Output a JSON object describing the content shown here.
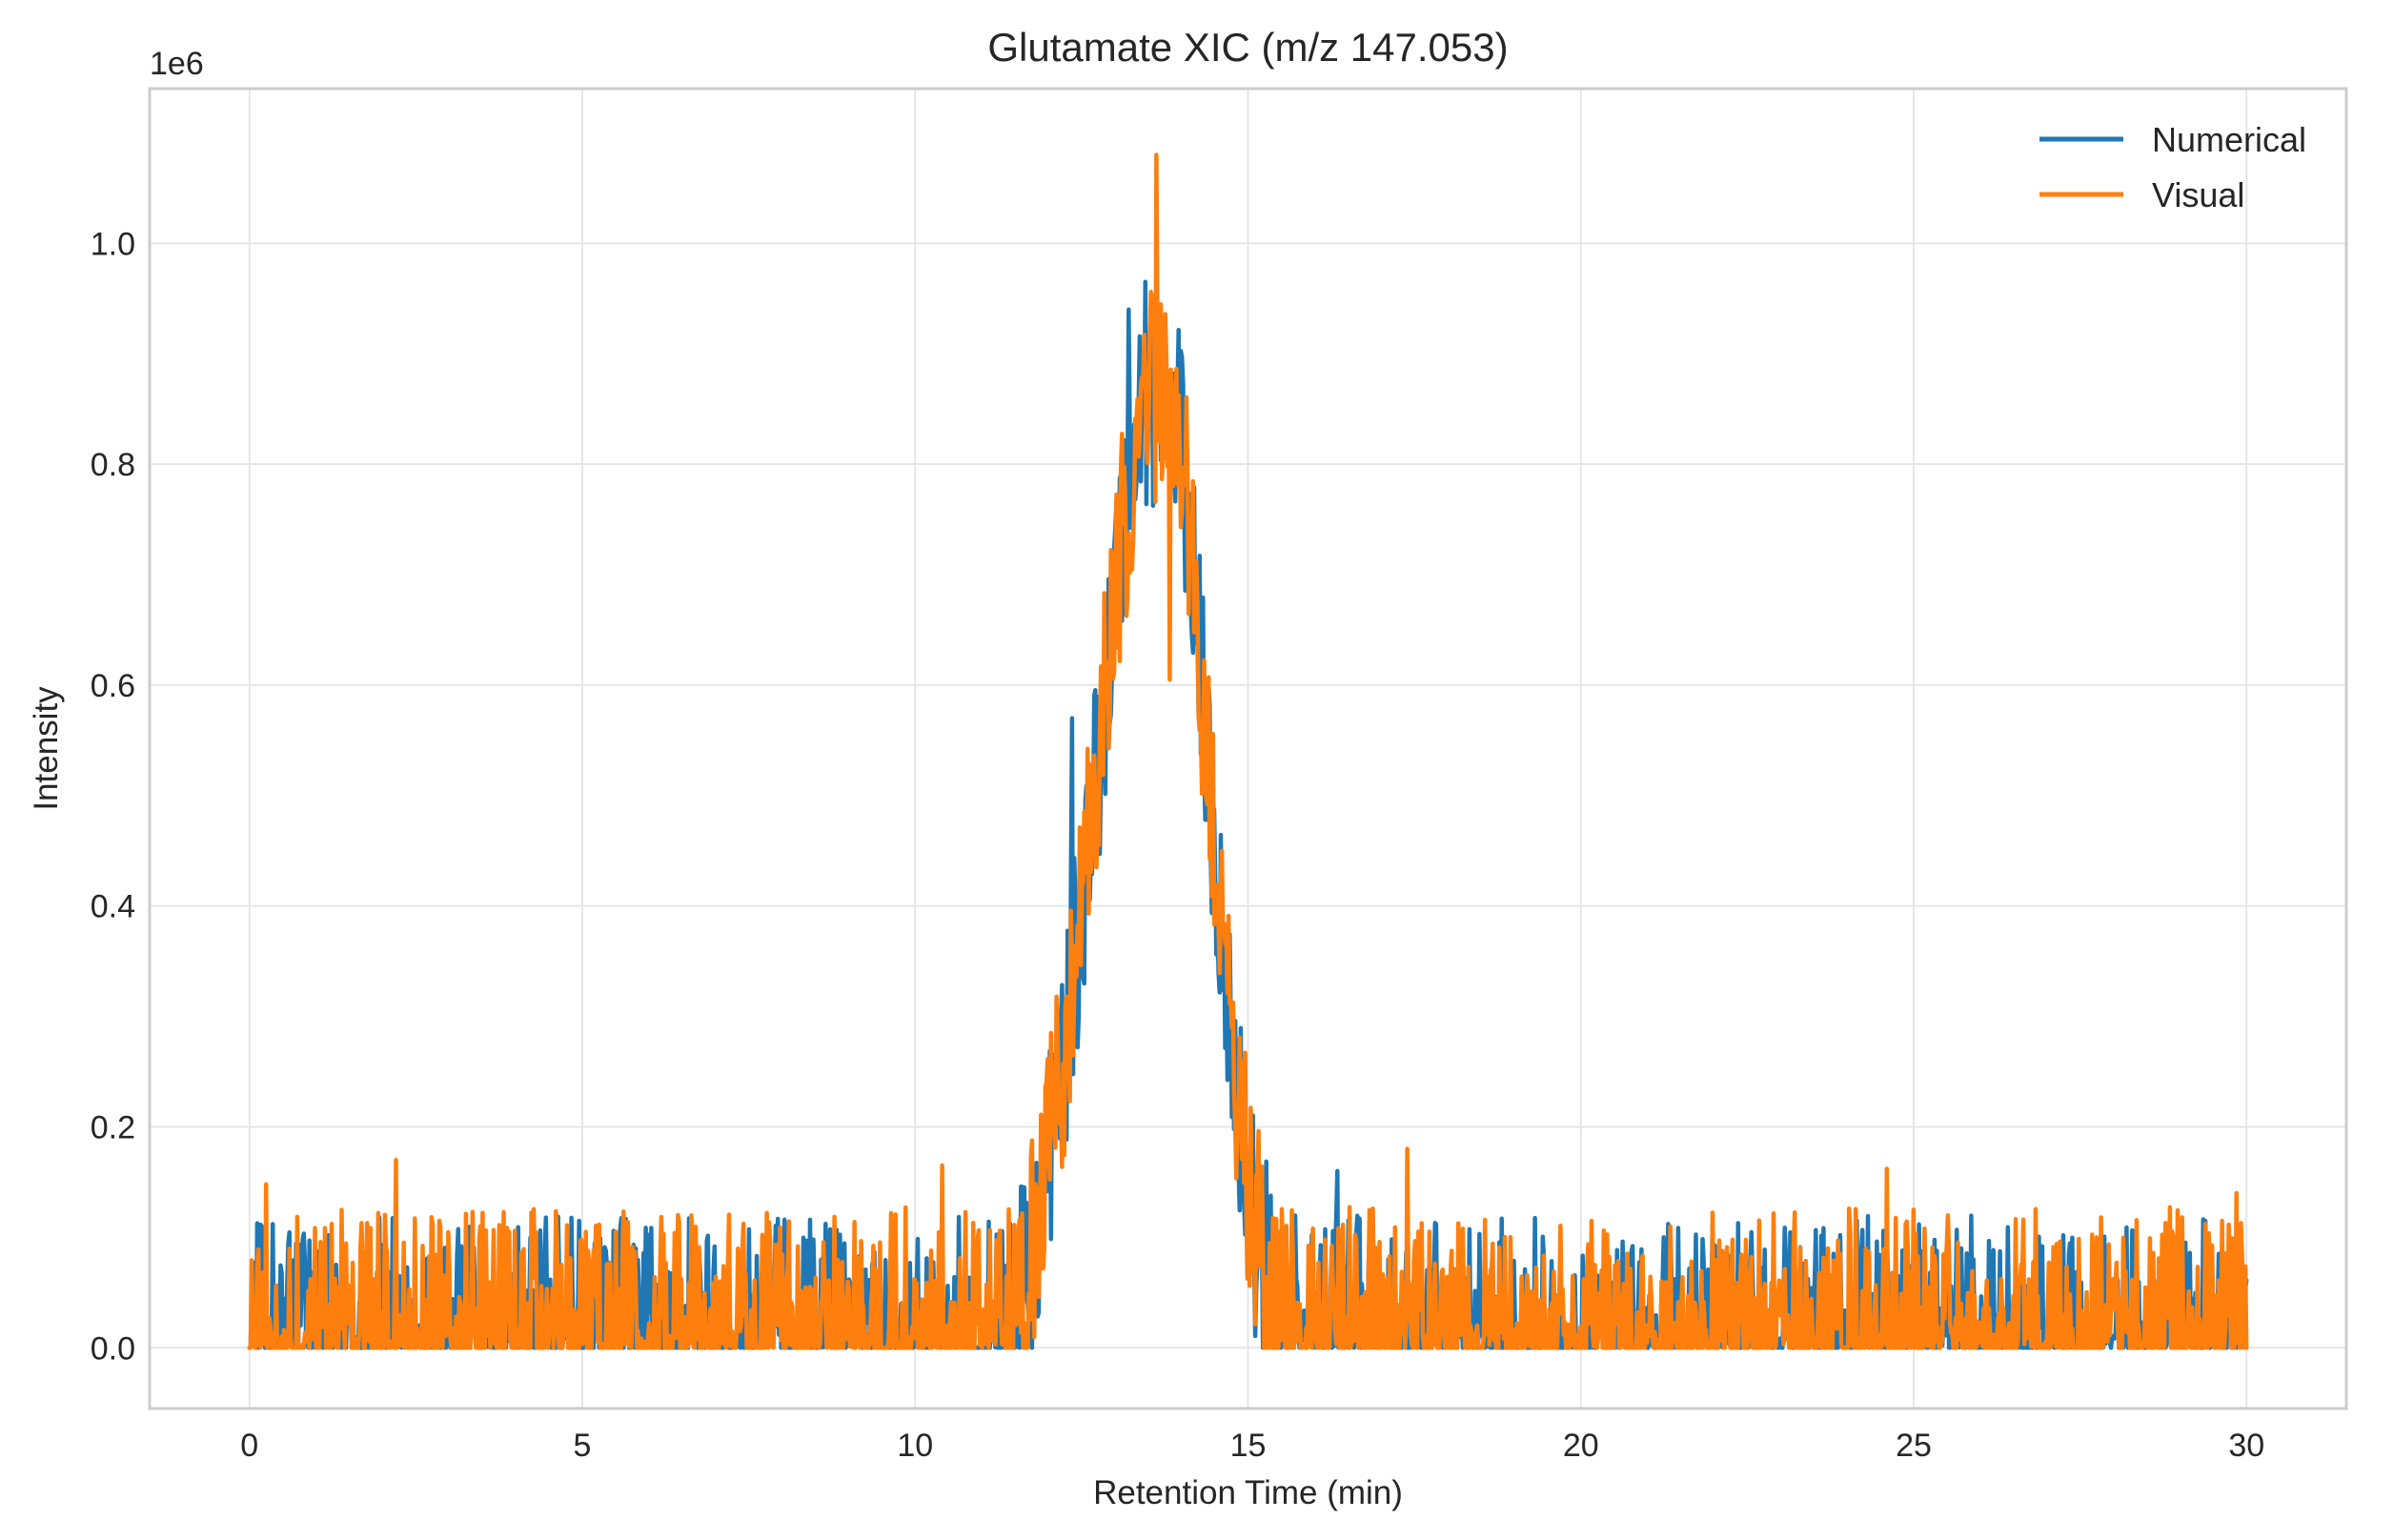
{
  "chart_data": {
    "type": "line",
    "title": "Glutamate XIC (m/z 147.053)",
    "xlabel": "Retention Time (min)",
    "ylabel": "Intensity",
    "offset_text": "1e6",
    "xlim": [
      -1.5,
      31.5
    ],
    "ylim": [
      -0.055,
      1.14
    ],
    "y_scale_multiplier": 1000000,
    "grid": true,
    "legend_position": "top-right",
    "x_ticks": [
      0,
      5,
      10,
      15,
      20,
      25,
      30
    ],
    "x_tick_labels": [
      "0",
      "5",
      "10",
      "15",
      "20",
      "25",
      "30"
    ],
    "y_ticks": [
      0.0,
      0.2,
      0.4,
      0.6,
      0.8,
      1.0
    ],
    "y_tick_labels": [
      "0.0",
      "0.2",
      "0.4",
      "0.6",
      "0.8",
      "1.0"
    ],
    "peak_profile": {
      "x": [
        0,
        11.4,
        11.8,
        12.2,
        12.5,
        12.8,
        13.0,
        13.3,
        13.5,
        13.7,
        14.0,
        14.2,
        14.5,
        14.8,
        15.1,
        15.4,
        15.7,
        16.0,
        30
      ],
      "y": [
        0.0,
        0.0,
        0.1,
        0.25,
        0.4,
        0.56,
        0.68,
        0.82,
        0.86,
        0.86,
        0.82,
        0.68,
        0.45,
        0.25,
        0.11,
        0.04,
        0.0,
        0.0,
        0.0
      ]
    },
    "series": [
      {
        "name": "Numerical",
        "color": "#1f77b4",
        "x_range": [
          0,
          30
        ],
        "n_points": 1800,
        "baseline_noise_max": 0.16,
        "peak_noise": 0.1,
        "spikes": [
          {
            "x": 13.2,
            "y": 0.94
          },
          {
            "x": 13.45,
            "y": 0.965
          },
          {
            "x": 12.35,
            "y": 0.57
          },
          {
            "x": 16.35,
            "y": 0.16
          }
        ]
      },
      {
        "name": "Visual",
        "color": "#ff7f0e",
        "x_range": [
          0,
          30
        ],
        "n_points": 1800,
        "baseline_noise_max": 0.17,
        "peak_noise": 0.1,
        "spikes": [
          {
            "x": 13.62,
            "y": 1.08
          },
          {
            "x": 13.68,
            "y": 0.82
          },
          {
            "x": 13.82,
            "y": 0.605
          },
          {
            "x": 2.2,
            "y": 0.17
          },
          {
            "x": 0.25,
            "y": 0.148
          },
          {
            "x": 10.4,
            "y": 0.165
          },
          {
            "x": 17.4,
            "y": 0.18
          },
          {
            "x": 24.6,
            "y": 0.162
          },
          {
            "x": 29.85,
            "y": 0.14
          }
        ]
      }
    ]
  }
}
